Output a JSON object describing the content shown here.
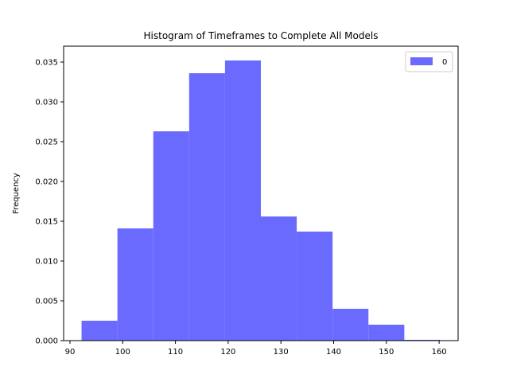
{
  "chart_data": {
    "type": "bar",
    "title": "Histogram of Timeframes to Complete All Models",
    "xlabel": "",
    "ylabel": "Frequency",
    "bin_edges": [
      92.2,
      99.0,
      105.8,
      112.6,
      119.4,
      126.2,
      133.0,
      139.8,
      146.6,
      153.4,
      160.2
    ],
    "values": [
      0.0025,
      0.0141,
      0.0263,
      0.0336,
      0.0352,
      0.0156,
      0.0137,
      0.004,
      0.002,
      0.0001
    ],
    "series": [
      {
        "name": "0",
        "color": "#6a6aff"
      }
    ],
    "xlim": [
      88.8,
      163.6
    ],
    "ylim": [
      0,
      0.037
    ],
    "xticks": [
      90,
      100,
      110,
      120,
      130,
      140,
      150,
      160
    ],
    "yticks": [
      0.0,
      0.005,
      0.01,
      0.015,
      0.02,
      0.025,
      0.03,
      0.035
    ],
    "ytick_labels": [
      "0.000",
      "0.005",
      "0.010",
      "0.015",
      "0.020",
      "0.025",
      "0.030",
      "0.035"
    ],
    "legend_position": "upper right",
    "grid": false
  }
}
